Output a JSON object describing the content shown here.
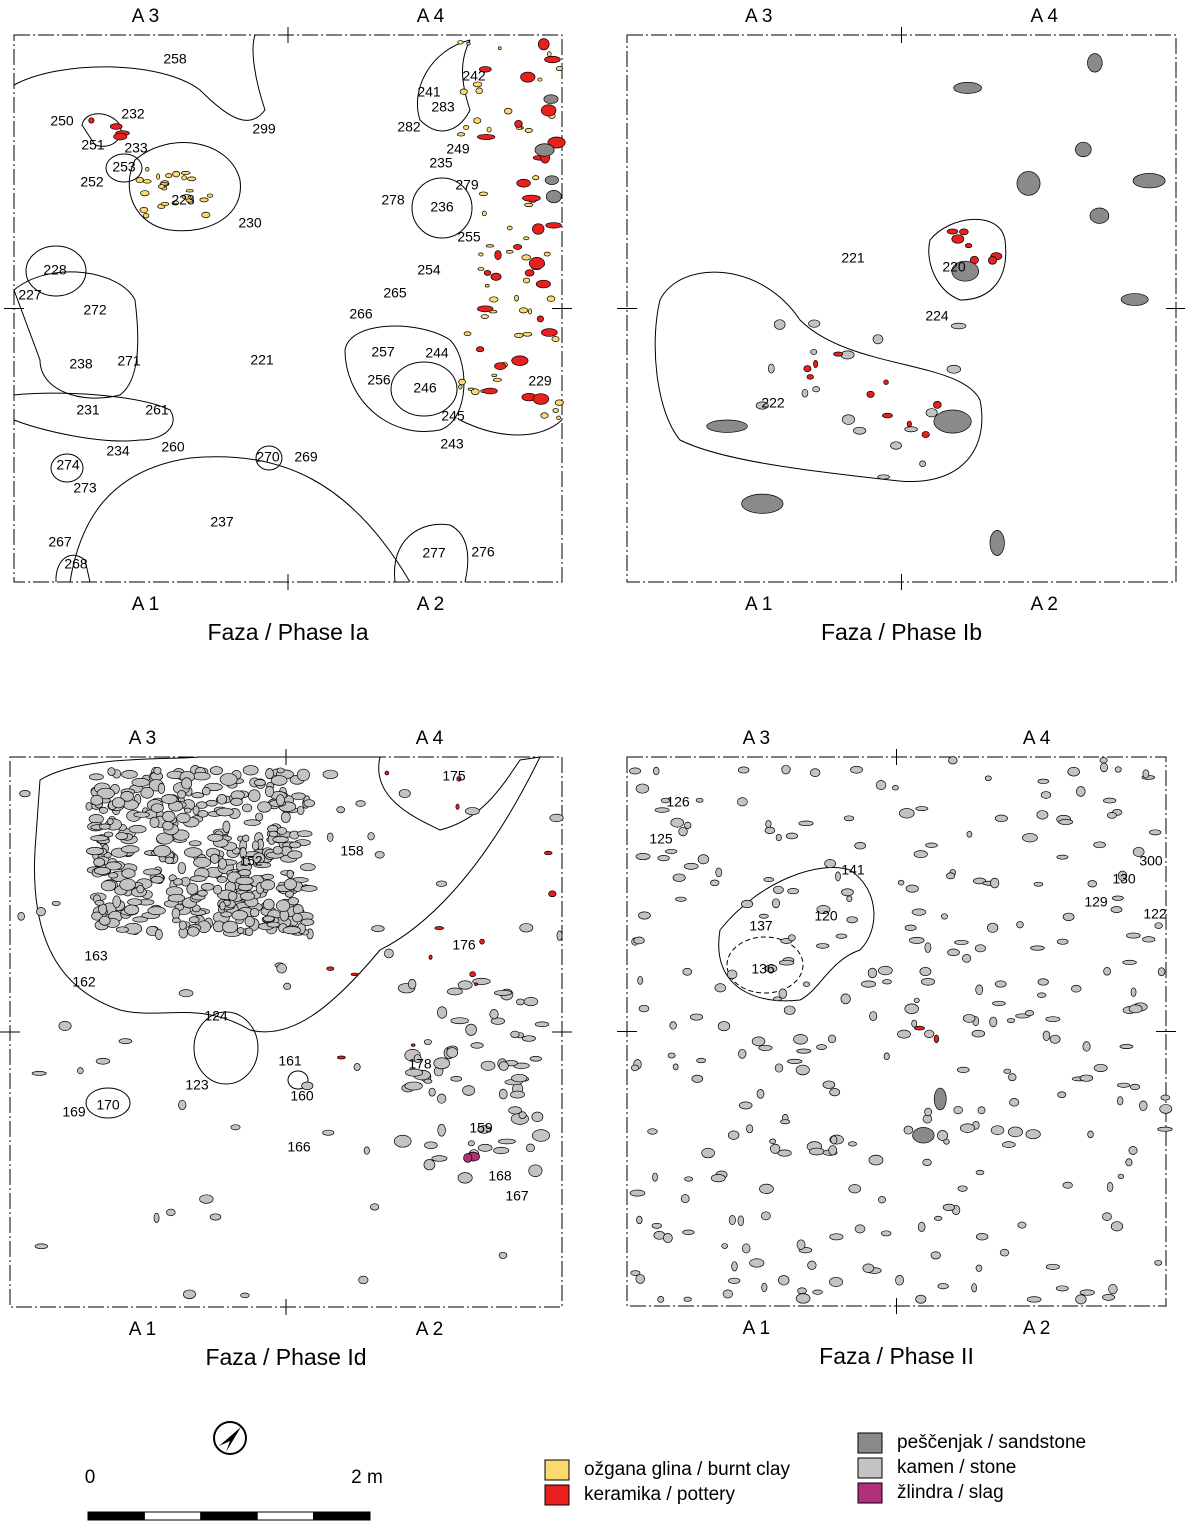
{
  "panels": [
    {
      "title": "Faza / Phase Ia",
      "grid_labels": [
        "A 3",
        "A 4",
        "A 1",
        "A 2"
      ],
      "features": [
        "258",
        "250",
        "232",
        "251",
        "233",
        "253",
        "252",
        "223",
        "230",
        "299",
        "228",
        "227",
        "272",
        "238",
        "271",
        "221",
        "231",
        "261",
        "234",
        "260",
        "274",
        "273",
        "270",
        "269",
        "237",
        "267",
        "268",
        "277",
        "276",
        "242",
        "241",
        "283",
        "282",
        "249",
        "235",
        "279",
        "278",
        "236",
        "255",
        "254",
        "265",
        "266",
        "257",
        "244",
        "256",
        "246",
        "245",
        "243",
        "229"
      ]
    },
    {
      "title": "Faza / Phase Ib",
      "grid_labels": [
        "A 3",
        "A 4",
        "A 1",
        "A 2"
      ],
      "features": [
        "221",
        "220",
        "224",
        "222"
      ]
    },
    {
      "title": "Faza / Phase Id",
      "grid_labels": [
        "A 3",
        "A 4",
        "A 1",
        "A 2"
      ],
      "features": [
        "175",
        "158",
        "152",
        "163",
        "162",
        "176",
        "124",
        "123",
        "161",
        "160",
        "169",
        "170",
        "178",
        "166",
        "159",
        "168",
        "167"
      ]
    },
    {
      "title": "Faza / Phase II",
      "grid_labels": [
        "A 3",
        "A 4",
        "A 1",
        "A 2"
      ],
      "features": [
        "126",
        "125",
        "141",
        "300",
        "130",
        "129",
        "122",
        "137",
        "120",
        "136"
      ]
    }
  ],
  "legend": {
    "items": [
      "ožgana glina / burnt clay",
      "keramika / pottery",
      "peščenjak / sandstone",
      "kamen / stone",
      "žlindra / slag"
    ]
  },
  "scale": {
    "start": "0",
    "end": "2 m"
  }
}
